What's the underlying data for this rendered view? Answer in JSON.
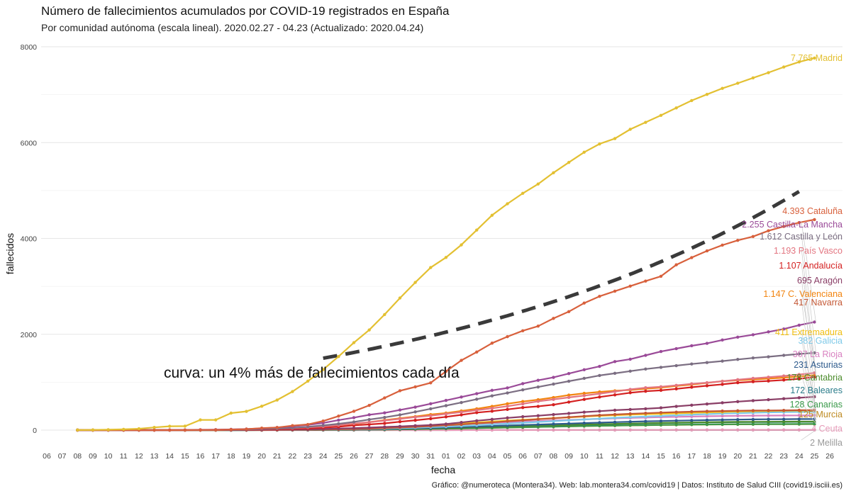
{
  "chart_data": {
    "type": "line",
    "title": "Número de fallecimientos acumulados por COVID-19 registrados en España",
    "subtitle": "Por comunidad autónoma (escala lineal). 2020.02.27 - 04.23 (Actualizado: 2020.04.24)",
    "xlabel": "fecha",
    "ylabel": "fallecidos",
    "caption": "Gráfico: @numeroteca (Montera34). Web: lab.montera34.com/covid19 | Datos: Instituto de Salud CIII (covid19.isciii.es)",
    "annotation": "curva: un 4% más de fallecimientos cada día",
    "ylim": [
      0,
      8000
    ],
    "yticks": [
      0,
      2000,
      4000,
      6000,
      8000
    ],
    "xticks": [
      "06",
      "07",
      "08",
      "09",
      "10",
      "11",
      "12",
      "13",
      "14",
      "15",
      "16",
      "17",
      "18",
      "19",
      "20",
      "21",
      "22",
      "23",
      "24",
      "25",
      "26",
      "27",
      "28",
      "29",
      "30",
      "31",
      "01",
      "02",
      "03",
      "04",
      "05",
      "06",
      "07",
      "08",
      "09",
      "10",
      "11",
      "12",
      "13",
      "14",
      "15",
      "16",
      "17",
      "18",
      "19",
      "20",
      "21",
      "22",
      "23",
      "24",
      "25",
      "26"
    ],
    "grid": true,
    "legend": "labels at line ends (right)",
    "reference_curve": {
      "name": "curva: un 4% más de fallecimientos cada día",
      "color": "#3a3a3a",
      "x_start_index": 18,
      "y_start": 1500,
      "x_end_index": 49,
      "y_end": 4980
    },
    "series": [
      {
        "name": "Madrid",
        "label": "7.765 Madrid",
        "color": "#E3C032",
        "values": [
          2,
          4,
          9,
          16,
          28,
          56,
          80,
          82,
          213,
          213,
          355,
          390,
          498,
          628,
          804,
          1021,
          1263,
          1535,
          1825,
          2090,
          2412,
          2757,
          3082,
          3392,
          3603,
          3865,
          4175,
          4483,
          4723,
          4941,
          5136,
          5371,
          5586,
          5800,
          5972,
          6084,
          6278,
          6423,
          6568,
          6724,
          6877,
          7007,
          7132,
          7239,
          7351,
          7460,
          7577,
          7684,
          7765
        ]
      },
      {
        "name": "Cataluña",
        "label": "4.393 Cataluña",
        "color": "#D8603C",
        "values": [
          0,
          0,
          0,
          0,
          0,
          0,
          0,
          1,
          3,
          5,
          12,
          21,
          41,
          55,
          93,
          118,
          190,
          292,
          393,
          516,
          672,
          821,
          902,
          986,
          1226,
          1455,
          1629,
          1815,
          1950,
          2073,
          2170,
          2331,
          2473,
          2651,
          2792,
          2900,
          3005,
          3110,
          3210,
          3450,
          3600,
          3740,
          3860,
          3960,
          4040,
          4160,
          4250,
          4330,
          4393
        ]
      },
      {
        "name": "Castilla-La Mancha",
        "label": "2.255 Castilla-La Mancha",
        "color": "#9A4A98",
        "values": [
          0,
          0,
          0,
          0,
          0,
          0,
          0,
          3,
          5,
          8,
          15,
          22,
          36,
          55,
          80,
          110,
          150,
          208,
          260,
          320,
          360,
          420,
          480,
          550,
          620,
          690,
          760,
          830,
          880,
          970,
          1040,
          1100,
          1180,
          1260,
          1330,
          1430,
          1480,
          1560,
          1640,
          1700,
          1760,
          1810,
          1880,
          1940,
          1990,
          2050,
          2110,
          2190,
          2255
        ]
      },
      {
        "name": "Castilla y León",
        "label": "1.612 Castilla y León",
        "color": "#7B6E82",
        "values": [
          0,
          0,
          0,
          0,
          0,
          0,
          0,
          1,
          2,
          4,
          8,
          14,
          22,
          33,
          48,
          68,
          98,
          132,
          170,
          220,
          265,
          318,
          380,
          445,
          510,
          575,
          645,
          715,
          775,
          840,
          900,
          960,
          1020,
          1080,
          1140,
          1185,
          1230,
          1275,
          1310,
          1345,
          1380,
          1410,
          1440,
          1475,
          1505,
          1530,
          1560,
          1590,
          1612
        ]
      },
      {
        "name": "País Vasco",
        "label": "1.193 País Vasco",
        "color": "#E37580",
        "values": [
          0,
          0,
          0,
          0,
          0,
          0,
          2,
          5,
          8,
          10,
          14,
          18,
          23,
          31,
          41,
          56,
          77,
          103,
          136,
          165,
          199,
          235,
          270,
          300,
          338,
          376,
          416,
          455,
          498,
          548,
          600,
          640,
          681,
          720,
          760,
          805,
          850,
          885,
          905,
          935,
          965,
          990,
          1020,
          1052,
          1080,
          1105,
          1130,
          1160,
          1193
        ]
      },
      {
        "name": "Andalucía",
        "label": "1.107 Andalucía",
        "color": "#D42020",
        "values": [
          0,
          0,
          0,
          0,
          0,
          0,
          0,
          0,
          1,
          2,
          4,
          7,
          12,
          17,
          25,
          36,
          53,
          70,
          99,
          119,
          140,
          175,
          205,
          238,
          276,
          318,
          365,
          395,
          432,
          470,
          495,
          530,
          585,
          640,
          690,
          735,
          780,
          810,
          830,
          860,
          895,
          925,
          955,
          990,
          1010,
          1025,
          1045,
          1070,
          1107
        ]
      },
      {
        "name": "Aragón",
        "label": "695 Aragón",
        "color": "#8A3E66",
        "values": [
          0,
          0,
          0,
          0,
          0,
          0,
          0,
          0,
          0,
          1,
          2,
          3,
          5,
          8,
          12,
          16,
          23,
          31,
          41,
          52,
          65,
          77,
          91,
          106,
          127,
          160,
          195,
          224,
          255,
          280,
          300,
          325,
          348,
          375,
          395,
          415,
          430,
          445,
          465,
          495,
          520,
          545,
          570,
          595,
          615,
          635,
          655,
          675,
          695
        ]
      },
      {
        "name": "C. Valenciana",
        "label": "1.147 C. Valenciana",
        "color": "#F2840F",
        "values": [
          0,
          0,
          0,
          0,
          0,
          0,
          0,
          1,
          2,
          3,
          4,
          8,
          13,
          22,
          35,
          49,
          70,
          101,
          127,
          164,
          208,
          246,
          282,
          325,
          355,
          400,
          444,
          495,
          550,
          596,
          634,
          680,
          730,
          768,
          797,
          820,
          837,
          862,
          887,
          920,
          950,
          985,
          1020,
          1040,
          1055,
          1075,
          1095,
          1120,
          1147
        ]
      },
      {
        "name": "Navarra",
        "label": "417 Navarra",
        "color": "#C45835",
        "values": [
          0,
          0,
          0,
          0,
          0,
          0,
          0,
          0,
          0,
          0,
          1,
          2,
          3,
          4,
          6,
          8,
          11,
          16,
          22,
          30,
          41,
          55,
          68,
          83,
          100,
          118,
          140,
          160,
          185,
          205,
          227,
          245,
          270,
          290,
          310,
          326,
          340,
          352,
          365,
          375,
          385,
          392,
          398,
          403,
          408,
          410,
          412,
          415,
          417
        ]
      },
      {
        "name": "Extremadura",
        "label": "411 Extremadura",
        "color": "#F2C014",
        "values": [
          0,
          0,
          0,
          0,
          0,
          0,
          0,
          0,
          0,
          0,
          1,
          2,
          3,
          5,
          8,
          12,
          17,
          24,
          32,
          42,
          53,
          67,
          82,
          98,
          117,
          137,
          158,
          178,
          198,
          215,
          232,
          250,
          265,
          282,
          297,
          310,
          322,
          332,
          340,
          350,
          360,
          370,
          378,
          387,
          395,
          400,
          404,
          408,
          411
        ]
      },
      {
        "name": "Galicia",
        "label": "382 Galicia",
        "color": "#7EC9E8",
        "values": [
          0,
          0,
          0,
          0,
          0,
          0,
          0,
          0,
          0,
          0,
          1,
          1,
          2,
          3,
          5,
          7,
          10,
          14,
          19,
          25,
          32,
          41,
          51,
          62,
          74,
          87,
          102,
          118,
          136,
          154,
          170,
          186,
          204,
          222,
          240,
          257,
          270,
          283,
          296,
          310,
          322,
          333,
          344,
          353,
          362,
          369,
          375,
          379,
          382
        ]
      },
      {
        "name": "La Rioja",
        "label": "307 La Rioja",
        "color": "#D880C0",
        "values": [
          0,
          0,
          0,
          0,
          0,
          0,
          1,
          2,
          3,
          4,
          5,
          7,
          9,
          12,
          15,
          20,
          26,
          33,
          42,
          52,
          63,
          75,
          88,
          100,
          113,
          126,
          139,
          151,
          164,
          177,
          190,
          202,
          213,
          224,
          235,
          245,
          254,
          262,
          270,
          277,
          283,
          289,
          294,
          298,
          301,
          303,
          305,
          306,
          307
        ]
      },
      {
        "name": "Asturias",
        "label": "231 Asturias",
        "color": "#2D5A8C",
        "values": [
          0,
          0,
          0,
          0,
          0,
          0,
          0,
          0,
          0,
          0,
          0,
          1,
          1,
          2,
          3,
          5,
          7,
          10,
          14,
          19,
          25,
          32,
          40,
          48,
          57,
          66,
          76,
          86,
          96,
          106,
          116,
          126,
          136,
          146,
          156,
          166,
          175,
          183,
          190,
          197,
          203,
          209,
          214,
          219,
          223,
          226,
          228,
          230,
          231
        ]
      },
      {
        "name": "Cantabria",
        "label": "178 Cantabria",
        "color": "#4C8C2C",
        "values": [
          0,
          0,
          0,
          0,
          0,
          0,
          0,
          0,
          0,
          0,
          0,
          1,
          1,
          2,
          3,
          4,
          6,
          8,
          11,
          15,
          19,
          24,
          30,
          37,
          44,
          51,
          59,
          67,
          75,
          83,
          91,
          99,
          107,
          115,
          123,
          130,
          137,
          143,
          149,
          155,
          160,
          164,
          168,
          171,
          173,
          175,
          176,
          177,
          178
        ]
      },
      {
        "name": "Baleares",
        "label": "172 Baleares",
        "color": "#2A7C8A",
        "values": [
          0,
          0,
          0,
          0,
          0,
          0,
          0,
          0,
          0,
          0,
          0,
          0,
          1,
          1,
          2,
          3,
          5,
          7,
          9,
          12,
          16,
          21,
          27,
          33,
          40,
          47,
          55,
          63,
          71,
          79,
          87,
          95,
          103,
          111,
          119,
          126,
          133,
          139,
          145,
          151,
          156,
          160,
          163,
          166,
          168,
          169,
          170,
          171,
          172
        ]
      },
      {
        "name": "Canarias",
        "label": "128 Canarias",
        "color": "#3A9A4A",
        "values": [
          0,
          0,
          0,
          0,
          0,
          0,
          0,
          0,
          0,
          0,
          0,
          0,
          1,
          1,
          2,
          3,
          4,
          6,
          8,
          10,
          13,
          17,
          21,
          26,
          31,
          36,
          42,
          48,
          54,
          60,
          66,
          72,
          78,
          84,
          90,
          95,
          100,
          104,
          108,
          112,
          115,
          118,
          120,
          122,
          124,
          125,
          126,
          127,
          128
        ]
      },
      {
        "name": "Murcia",
        "label": "125 Murcia",
        "color": "#BE8A22",
        "values": [
          0,
          0,
          0,
          0,
          0,
          0,
          0,
          0,
          0,
          0,
          0,
          0,
          0,
          1,
          1,
          2,
          3,
          5,
          7,
          9,
          12,
          16,
          20,
          25,
          30,
          35,
          41,
          47,
          53,
          59,
          65,
          71,
          77,
          83,
          88,
          93,
          98,
          102,
          106,
          110,
          113,
          116,
          118,
          120,
          121,
          122,
          123,
          124,
          125
        ]
      },
      {
        "name": "Ceuta",
        "label": "4 Ceuta",
        "color": "#E69AB8",
        "values": [
          0,
          0,
          0,
          0,
          0,
          0,
          0,
          0,
          0,
          0,
          0,
          0,
          0,
          0,
          0,
          0,
          0,
          0,
          0,
          0,
          0,
          0,
          0,
          0,
          0,
          0,
          1,
          1,
          1,
          2,
          2,
          2,
          2,
          3,
          3,
          3,
          3,
          3,
          3,
          4,
          4,
          4,
          4,
          4,
          4,
          4,
          4,
          4,
          4
        ]
      },
      {
        "name": "Melilla",
        "label": "2 Melilla",
        "color": "#9A9A9A",
        "values": [
          0,
          0,
          0,
          0,
          0,
          0,
          0,
          0,
          0,
          0,
          0,
          0,
          0,
          0,
          0,
          0,
          0,
          0,
          0,
          0,
          0,
          0,
          0,
          0,
          0,
          1,
          1,
          1,
          1,
          1,
          1,
          1,
          1,
          1,
          1,
          1,
          2,
          2,
          2,
          2,
          2,
          2,
          2,
          2,
          2,
          2,
          2,
          2,
          2
        ]
      }
    ]
  }
}
